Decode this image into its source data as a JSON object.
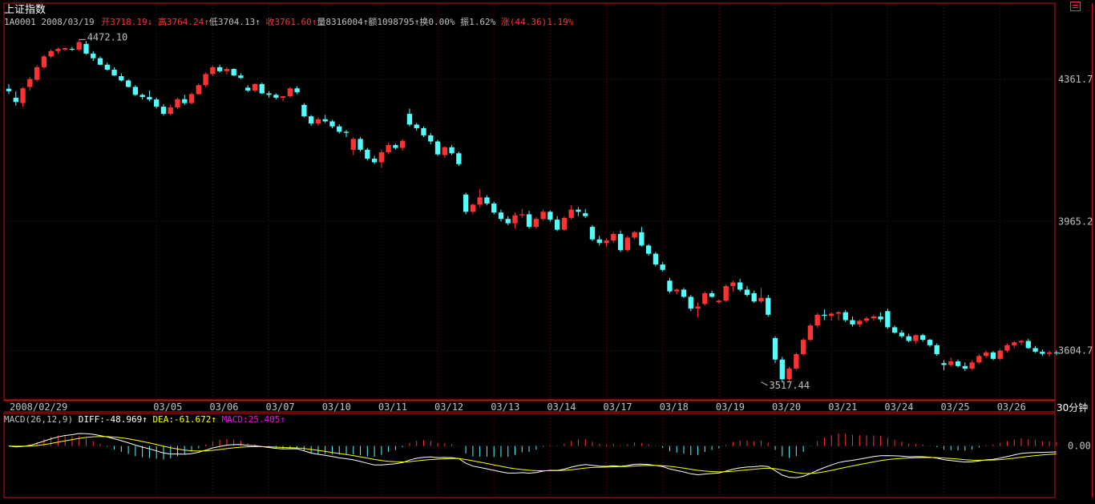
{
  "header": {
    "index_name": "上证指数",
    "code": "1A0001",
    "date": "2008/03/19",
    "open_label": "开",
    "open_value": "3718.19",
    "open_arrow": "↓",
    "high_label": "高",
    "high_value": "3764.24",
    "high_arrow": "↑",
    "low_label": "低",
    "low_value": "3704.13",
    "low_arrow": "↑",
    "close_label": "收",
    "close_value": "3761.60",
    "close_arrow": "↑",
    "volume_label": "量",
    "volume_value": "8316004",
    "volume_arrow": "↑",
    "amount_label": "额",
    "amount_value": "1098795",
    "amount_arrow": "↑",
    "turnover_label": "换",
    "turnover_value": "0.00%",
    "amplitude_label": "振",
    "amplitude_value": "1.62%",
    "change_label": "涨",
    "change_value": "(44.36)1.19%"
  },
  "macd_header": {
    "name": "MACD(26,12,9)",
    "diff_label": "DIFF:",
    "diff_value": "-48.969",
    "diff_arrow": "↑",
    "dea_label": "DEA:",
    "dea_value": "-61.672",
    "dea_arrow": "↑",
    "macd_label": "MACD:",
    "macd_value": "25.405",
    "macd_arrow": "↑"
  },
  "period_label": "30分钟",
  "colors": {
    "up": "#ff3232",
    "down": "#54fcfc",
    "grid": "#8b0000",
    "frame": "#c81414",
    "diff_line": "#ffffff",
    "dea_line": "#ffff00",
    "macd_label": "#ff00ff",
    "text": "#c0c0c0"
  },
  "chart_data": [
    {
      "type": "candlestick",
      "title": "上证指数",
      "timeframe": "30分钟",
      "ylim": [
        3470,
        4560
      ],
      "y_ticks": [
        "4361.7",
        "3965.2",
        "3604.7"
      ],
      "date_labels": [
        {
          "label": "2008/02/29",
          "index": 0
        },
        {
          "label": "03/05",
          "index": 21
        },
        {
          "label": "03/06",
          "index": 29
        },
        {
          "label": "03/07",
          "index": 37
        },
        {
          "label": "03/10",
          "index": 45
        },
        {
          "label": "03/11",
          "index": 53
        },
        {
          "label": "03/12",
          "index": 61
        },
        {
          "label": "03/13",
          "index": 69
        },
        {
          "label": "03/14",
          "index": 77
        },
        {
          "label": "03/17",
          "index": 85
        },
        {
          "label": "03/18",
          "index": 93
        },
        {
          "label": "03/19",
          "index": 101
        },
        {
          "label": "03/20",
          "index": 109
        },
        {
          "label": "03/21",
          "index": 117
        },
        {
          "label": "03/24",
          "index": 125
        },
        {
          "label": "03/25",
          "index": 133
        },
        {
          "label": "03/26",
          "index": 141
        }
      ],
      "annotations": [
        {
          "label": "4472.10",
          "index": 10,
          "value": 4472.1
        },
        {
          "label": "3517.44",
          "index": 107,
          "value": 3517.44
        }
      ],
      "candles": [
        [
          4335,
          4348,
          4320,
          4328
        ],
        [
          4310,
          4328,
          4288,
          4298
        ],
        [
          4295,
          4340,
          4285,
          4336
        ],
        [
          4340,
          4368,
          4330,
          4362
        ],
        [
          4360,
          4400,
          4355,
          4395
        ],
        [
          4395,
          4430,
          4390,
          4425
        ],
        [
          4425,
          4445,
          4420,
          4440
        ],
        [
          4440,
          4450,
          4432,
          4446
        ],
        [
          4444,
          4450,
          4440,
          4448
        ],
        [
          4446,
          4452,
          4440,
          4444
        ],
        [
          4444,
          4472,
          4440,
          4465
        ],
        [
          4460,
          4468,
          4430,
          4433
        ],
        [
          4433,
          4440,
          4412,
          4420
        ],
        [
          4420,
          4425,
          4400,
          4402
        ],
        [
          4402,
          4408,
          4385,
          4388
        ],
        [
          4388,
          4395,
          4370,
          4372
        ],
        [
          4370,
          4378,
          4355,
          4358
        ],
        [
          4358,
          4362,
          4338,
          4340
        ],
        [
          4340,
          4345,
          4315,
          4318
        ],
        [
          4318,
          4322,
          4305,
          4312
        ],
        [
          4312,
          4330,
          4300,
          4305
        ],
        [
          4305,
          4310,
          4280,
          4285
        ],
        [
          4285,
          4292,
          4260,
          4265
        ],
        [
          4265,
          4290,
          4260,
          4283
        ],
        [
          4283,
          4310,
          4278,
          4306
        ],
        [
          4306,
          4318,
          4290,
          4295
        ],
        [
          4295,
          4325,
          4292,
          4320
        ],
        [
          4320,
          4350,
          4318,
          4345
        ],
        [
          4345,
          4380,
          4340,
          4376
        ],
        [
          4376,
          4400,
          4370,
          4395
        ],
        [
          4395,
          4402,
          4380,
          4384
        ],
        [
          4384,
          4395,
          4375,
          4390
        ],
        [
          4390,
          4392,
          4370,
          4372
        ],
        [
          4372,
          4378,
          4362,
          4365
        ],
        [
          4338,
          4345,
          4325,
          4330
        ],
        [
          4330,
          4350,
          4325,
          4348
        ],
        [
          4348,
          4352,
          4320,
          4322
        ],
        [
          4322,
          4328,
          4310,
          4318
        ],
        [
          4318,
          4322,
          4305,
          4310
        ],
        [
          4310,
          4315,
          4300,
          4314
        ],
        [
          4314,
          4340,
          4310,
          4336
        ],
        [
          4336,
          4342,
          4320,
          4325
        ],
        [
          4290,
          4295,
          4255,
          4258
        ],
        [
          4258,
          4262,
          4232,
          4238
        ],
        [
          4238,
          4255,
          4232,
          4250
        ],
        [
          4250,
          4262,
          4240,
          4244
        ],
        [
          4244,
          4248,
          4225,
          4230
        ],
        [
          4230,
          4236,
          4210,
          4215
        ],
        [
          4215,
          4220,
          4200,
          4212
        ],
        [
          4165,
          4200,
          4150,
          4195
        ],
        [
          4195,
          4200,
          4160,
          4165
        ],
        [
          4165,
          4170,
          4135,
          4140
        ],
        [
          4140,
          4148,
          4125,
          4130
        ],
        [
          4130,
          4165,
          4115,
          4158
        ],
        [
          4158,
          4185,
          4152,
          4178
        ],
        [
          4178,
          4182,
          4165,
          4170
        ],
        [
          4170,
          4195,
          4162,
          4190
        ],
        [
          4265,
          4280,
          4230,
          4235
        ],
        [
          4235,
          4240,
          4218,
          4225
        ],
        [
          4225,
          4230,
          4200,
          4205
        ],
        [
          4205,
          4212,
          4180,
          4188
        ],
        [
          4188,
          4192,
          4148,
          4152
        ],
        [
          4150,
          4175,
          4142,
          4172
        ],
        [
          4172,
          4178,
          4150,
          4155
        ],
        [
          4155,
          4160,
          4120,
          4125
        ],
        [
          4040,
          4045,
          3985,
          3992
        ],
        [
          3992,
          4015,
          3985,
          4012
        ],
        [
          4012,
          4055,
          4005,
          4032
        ],
        [
          4032,
          4038,
          4010,
          4015
        ],
        [
          4015,
          4020,
          3985,
          3990
        ],
        [
          3990,
          3998,
          3965,
          3972
        ],
        [
          3972,
          3980,
          3955,
          3960
        ],
        [
          3960,
          3990,
          3945,
          3982
        ],
        [
          3982,
          4000,
          3975,
          3985
        ],
        [
          3985,
          3995,
          3945,
          3950
        ],
        [
          3950,
          3978,
          3945,
          3972
        ],
        [
          3972,
          3998,
          3968,
          3992
        ],
        [
          3992,
          3995,
          3965,
          3970
        ],
        [
          3970,
          3980,
          3938,
          3942
        ],
        [
          3942,
          3980,
          3938,
          3975
        ],
        [
          3975,
          4010,
          3970,
          3998
        ],
        [
          3998,
          4005,
          3980,
          3992
        ],
        [
          3988,
          4000,
          3975,
          3980
        ],
        [
          3950,
          3955,
          3910,
          3915
        ],
        [
          3915,
          3925,
          3898,
          3905
        ],
        [
          3905,
          3918,
          3895,
          3912
        ],
        [
          3912,
          3935,
          3905,
          3930
        ],
        [
          3930,
          3940,
          3880,
          3885
        ],
        [
          3885,
          3925,
          3880,
          3920
        ],
        [
          3920,
          3938,
          3915,
          3935
        ],
        [
          3935,
          3950,
          3895,
          3898
        ],
        [
          3898,
          3902,
          3870,
          3875
        ],
        [
          3875,
          3880,
          3840,
          3845
        ],
        [
          3845,
          3852,
          3825,
          3830
        ],
        [
          3800,
          3808,
          3765,
          3770
        ],
        [
          3770,
          3778,
          3762,
          3775
        ],
        [
          3775,
          3780,
          3752,
          3755
        ],
        [
          3755,
          3760,
          3715,
          3722
        ],
        [
          3722,
          3740,
          3698,
          3728
        ],
        [
          3735,
          3770,
          3730,
          3765
        ],
        [
          3765,
          3772,
          3752,
          3755
        ],
        [
          3740,
          3748,
          3735,
          3744
        ],
        [
          3744,
          3790,
          3740,
          3785
        ],
        [
          3785,
          3800,
          3770,
          3795
        ],
        [
          3795,
          3805,
          3770,
          3775
        ],
        [
          3775,
          3785,
          3755,
          3760
        ],
        [
          3765,
          3772,
          3738,
          3742
        ],
        [
          3742,
          3780,
          3738,
          3752
        ],
        [
          3752,
          3760,
          3700,
          3705
        ],
        [
          3640,
          3645,
          3570,
          3580
        ],
        [
          3580,
          3588,
          3517,
          3525
        ],
        [
          3525,
          3560,
          3520,
          3555
        ],
        [
          3555,
          3600,
          3550,
          3595
        ],
        [
          3595,
          3640,
          3590,
          3635
        ],
        [
          3635,
          3680,
          3630,
          3675
        ],
        [
          3675,
          3710,
          3668,
          3705
        ],
        [
          3705,
          3720,
          3690,
          3702
        ],
        [
          3702,
          3712,
          3688,
          3708
        ],
        [
          3708,
          3715,
          3690,
          3712
        ],
        [
          3712,
          3718,
          3685,
          3690
        ],
        [
          3690,
          3700,
          3672,
          3678
        ],
        [
          3678,
          3692,
          3670,
          3688
        ],
        [
          3688,
          3700,
          3682,
          3695
        ],
        [
          3695,
          3705,
          3688,
          3700
        ],
        [
          3700,
          3712,
          3685,
          3692
        ],
        [
          3715,
          3722,
          3665,
          3670
        ],
        [
          3670,
          3675,
          3652,
          3655
        ],
        [
          3655,
          3662,
          3640,
          3645
        ],
        [
          3645,
          3652,
          3628,
          3632
        ],
        [
          3632,
          3650,
          3625,
          3648
        ],
        [
          3648,
          3652,
          3630,
          3635
        ],
        [
          3635,
          3638,
          3615,
          3620
        ],
        [
          3620,
          3625,
          3590,
          3595
        ],
        [
          3570,
          3578,
          3550,
          3565
        ],
        [
          3565,
          3585,
          3560,
          3575
        ],
        [
          3575,
          3580,
          3558,
          3562
        ],
        [
          3562,
          3572,
          3548,
          3555
        ],
        [
          3555,
          3578,
          3550,
          3572
        ],
        [
          3572,
          3595,
          3568,
          3590
        ],
        [
          3590,
          3605,
          3585,
          3600
        ],
        [
          3600,
          3604,
          3578,
          3582
        ],
        [
          3582,
          3610,
          3578,
          3605
        ],
        [
          3605,
          3625,
          3600,
          3620
        ],
        [
          3620,
          3632,
          3612,
          3628
        ],
        [
          3628,
          3635,
          3620,
          3632
        ],
        [
          3632,
          3638,
          3610,
          3612
        ],
        [
          3612,
          3618,
          3598,
          3602
        ],
        [
          3602,
          3608,
          3590,
          3596
        ],
        [
          3596,
          3605,
          3588,
          3600
        ],
        [
          3600,
          3606,
          3592,
          3598
        ]
      ]
    },
    {
      "type": "macd",
      "series_names": [
        "DIFF",
        "DEA",
        "MACD"
      ],
      "ylim": [
        -125,
        75
      ],
      "y_ticks": [
        "0.00"
      ],
      "diff_last": -48.969,
      "dea_last": -61.672,
      "macd_last": 25.405
    }
  ]
}
